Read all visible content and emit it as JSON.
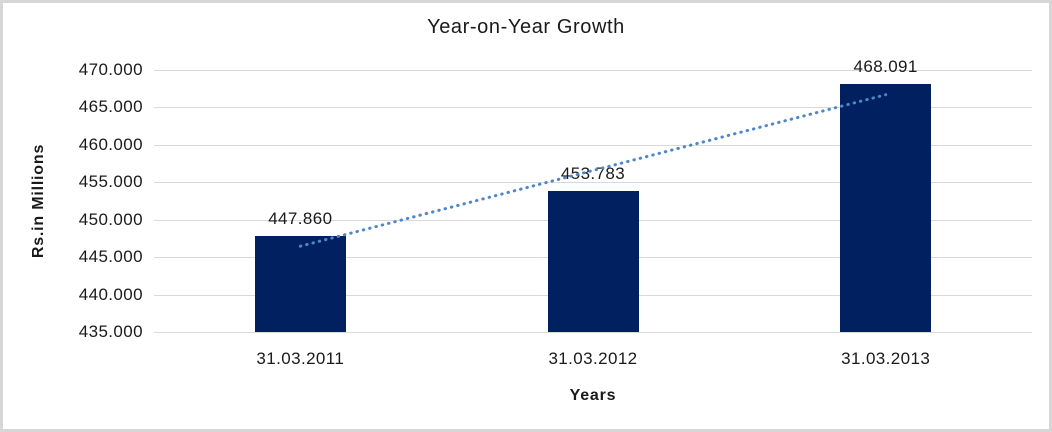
{
  "chart_data": {
    "type": "bar",
    "title": "Year-on-Year Growth",
    "xlabel": "Years",
    "ylabel": "Rs.in Millions",
    "categories": [
      "31.03.2011",
      "31.03.2012",
      "31.03.2013"
    ],
    "values": [
      447.86,
      453.783,
      468.091
    ],
    "value_labels": [
      "447.860",
      "453.783",
      "468.091"
    ],
    "ylim": [
      435,
      470
    ],
    "ytick_step": 5,
    "ytick_labels": [
      "470.000",
      "465.000",
      "460.000",
      "455.000",
      "450.000",
      "445.000",
      "440.000",
      "435.000"
    ],
    "grid": true,
    "legend": false,
    "trendline": {
      "type": "linear",
      "style": "dotted"
    }
  },
  "colors": {
    "bar": "#002060",
    "trendline": "#4F86C6",
    "gridline": "#D9D9D9",
    "text": "#1A1A1A",
    "frame_border": "#D6D6D6",
    "background": "#FFFFFF"
  }
}
